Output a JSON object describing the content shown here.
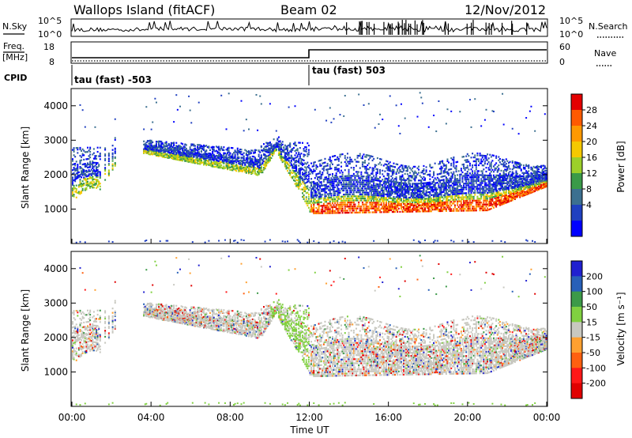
{
  "header": {
    "station": "Wallops Island (fitACF)",
    "beam": "Beam 02",
    "date": "12/Nov/2012"
  },
  "top_panels": {
    "nsky_label": "N.Sky",
    "nsky_ticks": [
      "10^5",
      "10^0"
    ],
    "nsearch_label": "N.Search",
    "nsearch_ticks": [
      "10^5",
      "10^0"
    ],
    "freq_label": "Freq.",
    "freq_unit": "[MHz]",
    "freq_ticks": [
      "18",
      "8"
    ],
    "nave_label": "Nave",
    "nave_ticks": [
      "60",
      "0"
    ],
    "cpid_label": "CPID",
    "cpid_1": "tau (fast) -503",
    "cpid_2": "tau (fast) 503"
  },
  "chart_data": [
    {
      "type": "heatmap",
      "name": "power",
      "ylabel": "Slant Range [km]",
      "yticks": [
        "4000",
        "3000",
        "2000",
        "1000"
      ],
      "ylim": [
        0,
        4500
      ],
      "x_range_hours": [
        0,
        24
      ],
      "colorbar": {
        "label": "Power [dB]",
        "ticks": [
          "28",
          "24",
          "20",
          "16",
          "12",
          "8",
          "4"
        ],
        "colors": [
          "#e40000",
          "#ff5a00",
          "#ff9900",
          "#f5c800",
          "#9ccf2a",
          "#3a9a48",
          "#3c7090",
          "#2040c0",
          "#0000ff"
        ]
      },
      "features": [
        {
          "start": "00:00",
          "end": "01:30",
          "range_km": [
            1200,
            2800
          ]
        },
        {
          "start": "01:30",
          "end": "12:00",
          "range_km": [
            1200,
            3300
          ]
        },
        {
          "start": "12:00",
          "end": "24:00",
          "range_km": [
            900,
            2600
          ]
        }
      ]
    },
    {
      "type": "heatmap",
      "name": "velocity",
      "ylabel": "Slant Range [km]",
      "yticks": [
        "4000",
        "3000",
        "2000",
        "1000"
      ],
      "ylim": [
        0,
        4500
      ],
      "colorbar": {
        "label": "Velocity [m s⁻¹]",
        "ticks": [
          "200",
          "100",
          "50",
          "15",
          "-15",
          "-50",
          "-100",
          "-200"
        ],
        "colors": [
          "#2020d0",
          "#2860b8",
          "#3c9a48",
          "#80d040",
          "#c8c8c0",
          "#ffa030",
          "#ff6010",
          "#ff1818",
          "#e00000"
        ]
      }
    }
  ],
  "xaxis": {
    "ticks": [
      "00:00",
      "04:00",
      "08:00",
      "12:00",
      "16:00",
      "20:00",
      "00:00"
    ],
    "label": "Time UT"
  }
}
